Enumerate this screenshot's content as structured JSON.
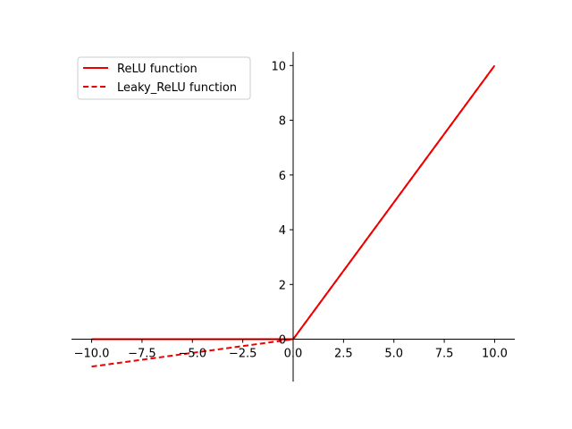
{
  "chart_data": {
    "type": "line",
    "title": "",
    "xlabel": "",
    "ylabel": "",
    "xlim": [
      -11.0,
      11.0
    ],
    "ylim": [
      -1.55,
      10.5
    ],
    "spines": "centered",
    "grid": false,
    "legend_placement": "upper-left",
    "x_ticks": [
      -10.0,
      -7.5,
      -5.0,
      -2.5,
      0.0,
      2.5,
      5.0,
      7.5,
      10.0
    ],
    "x_tick_labels": [
      "−10.0",
      "−7.5",
      "−5.0",
      "−2.5",
      "0.0",
      "2.5",
      "5.0",
      "7.5",
      "10.0"
    ],
    "y_ticks": [
      0,
      2,
      4,
      6,
      8,
      10
    ],
    "y_tick_labels": [
      "0",
      "2",
      "4",
      "6",
      "8",
      "10"
    ],
    "series": [
      {
        "name": "ReLU function",
        "style": "solid",
        "color": "#ee0000",
        "x": [
          -10,
          0,
          10
        ],
        "y": [
          0,
          0,
          10
        ]
      },
      {
        "name": "Leaky_ReLU function",
        "style": "dashed",
        "color": "#ee0000",
        "x": [
          -10,
          0,
          10
        ],
        "y": [
          -1,
          0,
          10
        ]
      }
    ]
  }
}
